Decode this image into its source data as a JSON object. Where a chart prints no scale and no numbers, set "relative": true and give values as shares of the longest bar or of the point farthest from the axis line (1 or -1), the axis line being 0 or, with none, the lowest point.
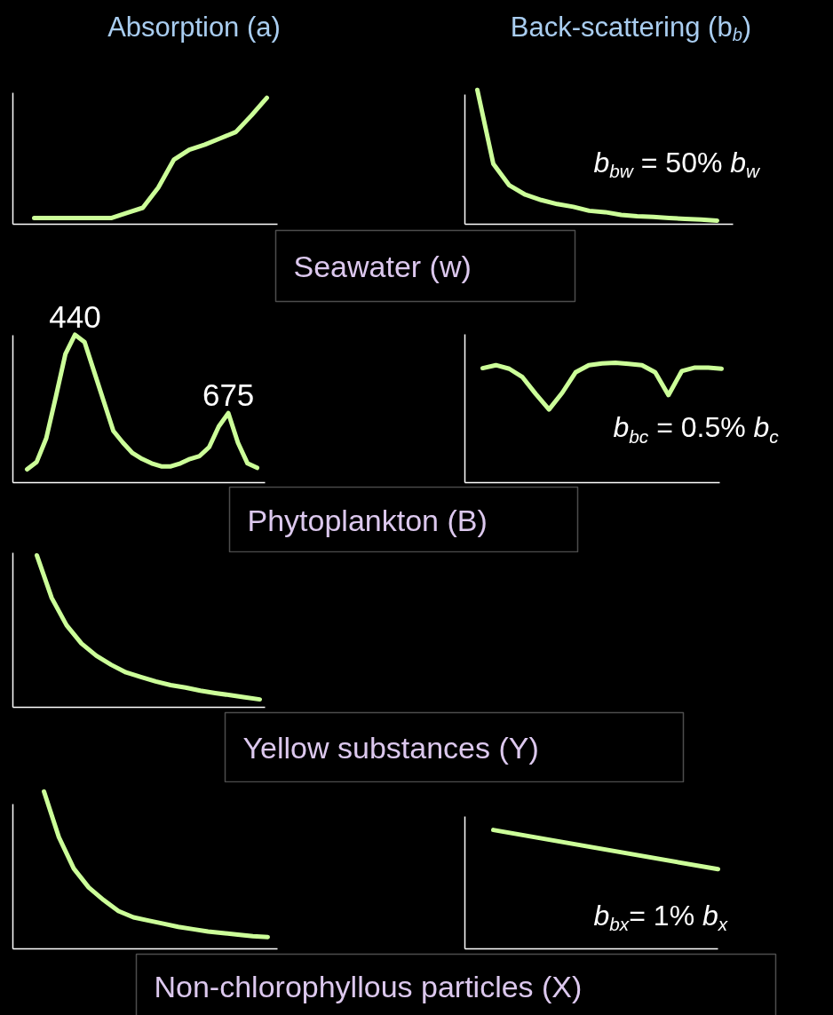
{
  "chart_data": [
    {
      "type": "line",
      "relative": true,
      "title": "Absorption (a)",
      "xlabel": "Seawater  (w)",
      "categories": [
        null,
        null,
        null,
        null,
        null,
        null,
        null,
        null,
        null,
        null,
        null,
        null,
        null,
        null,
        null,
        null
      ],
      "series": [
        {
          "color": "#ccff99",
          "values": [
            0.05,
            0.05,
            0.05,
            0.05,
            0.05,
            0.05,
            0.09,
            0.13,
            0.29,
            0.51,
            0.59,
            0.63,
            0.68,
            0.73,
            0.86,
            1
          ]
        }
      ]
    },
    {
      "type": "line",
      "relative": true,
      "title": "Back-scattering (b$_{b}$)",
      "annotations": [
        "b$_{bw}$ = 50% b$_{w}$"
      ],
      "categories": [
        null,
        null,
        null,
        null,
        null,
        null,
        null,
        null,
        null,
        null,
        null,
        null,
        null,
        null,
        null,
        null
      ],
      "series": [
        {
          "color": "#ccff99",
          "values": [
            1,
            0.45,
            0.29,
            0.22,
            0.18,
            0.15,
            0.13,
            0.1,
            0.09,
            0.07,
            0.06,
            0.055,
            0.047,
            0.04,
            0.035,
            0.027
          ]
        }
      ]
    },
    {
      "type": "line",
      "relative": true,
      "xlabel": "Phytoplankton (B)",
      "annotations": [
        "440",
        "675"
      ],
      "categories": [
        null,
        null,
        null,
        null,
        null,
        null,
        null,
        null,
        null,
        null,
        null,
        null,
        null,
        null,
        null,
        null,
        null,
        null,
        null,
        null,
        null,
        null,
        null,
        null,
        null
      ],
      "series": [
        {
          "color": "#ccff99",
          "values": [
            0.09,
            0.14,
            0.3,
            0.58,
            0.87,
            1,
            0.95,
            0.75,
            0.55,
            0.35,
            0.27,
            0.2,
            0.16,
            0.13,
            0.11,
            0.11,
            0.13,
            0.16,
            0.18,
            0.24,
            0.38,
            0.47,
            0.27,
            0.13,
            0.1
          ]
        }
      ]
    },
    {
      "type": "line",
      "relative": true,
      "annotations": [
        "b$_{bc}$ = 0.5% b$_{c}$"
      ],
      "categories": [
        null,
        null,
        null,
        null,
        null,
        null,
        null,
        null,
        null,
        null,
        null,
        null,
        null,
        null,
        null,
        null,
        null,
        null,
        null
      ],
      "series": [
        {
          "color": "#ccff99",
          "values": [
            0.955,
            0.98,
            0.95,
            0.88,
            0.74,
            0.61,
            0.75,
            0.92,
            0.98,
            0.995,
            1,
            0.99,
            0.98,
            0.92,
            0.73,
            0.93,
            0.96,
            0.96,
            0.95
          ]
        }
      ]
    },
    {
      "type": "line",
      "relative": true,
      "xlabel": "Yellow substances (Y)",
      "categories": [
        null,
        null,
        null,
        null,
        null,
        null,
        null,
        null,
        null,
        null,
        null,
        null,
        null,
        null,
        null,
        null
      ],
      "series": [
        {
          "color": "#ccff99",
          "values": [
            1,
            0.72,
            0.54,
            0.42,
            0.34,
            0.28,
            0.23,
            0.2,
            0.17,
            0.146,
            0.13,
            0.11,
            0.094,
            0.08,
            0.066,
            0.052
          ]
        }
      ]
    },
    {
      "type": "line",
      "relative": true,
      "xlabel": "Non-chlorophyllous particles (X)",
      "categories": [
        null,
        null,
        null,
        null,
        null,
        null,
        null,
        null,
        null,
        null,
        null,
        null,
        null,
        null,
        null,
        null
      ],
      "series": [
        {
          "color": "#ccff99",
          "values": [
            1,
            0.71,
            0.51,
            0.39,
            0.31,
            0.24,
            0.2,
            0.18,
            0.16,
            0.14,
            0.125,
            0.11,
            0.1,
            0.09,
            0.08,
            0.075
          ]
        }
      ]
    },
    {
      "type": "line",
      "relative": true,
      "annotations": [
        "b$_{bx}$= 1% b$_{x}$"
      ],
      "categories": [
        null,
        null
      ],
      "series": [
        {
          "color": "#ccff99",
          "values": [
            1,
            0.67
          ]
        }
      ]
    }
  ]
}
